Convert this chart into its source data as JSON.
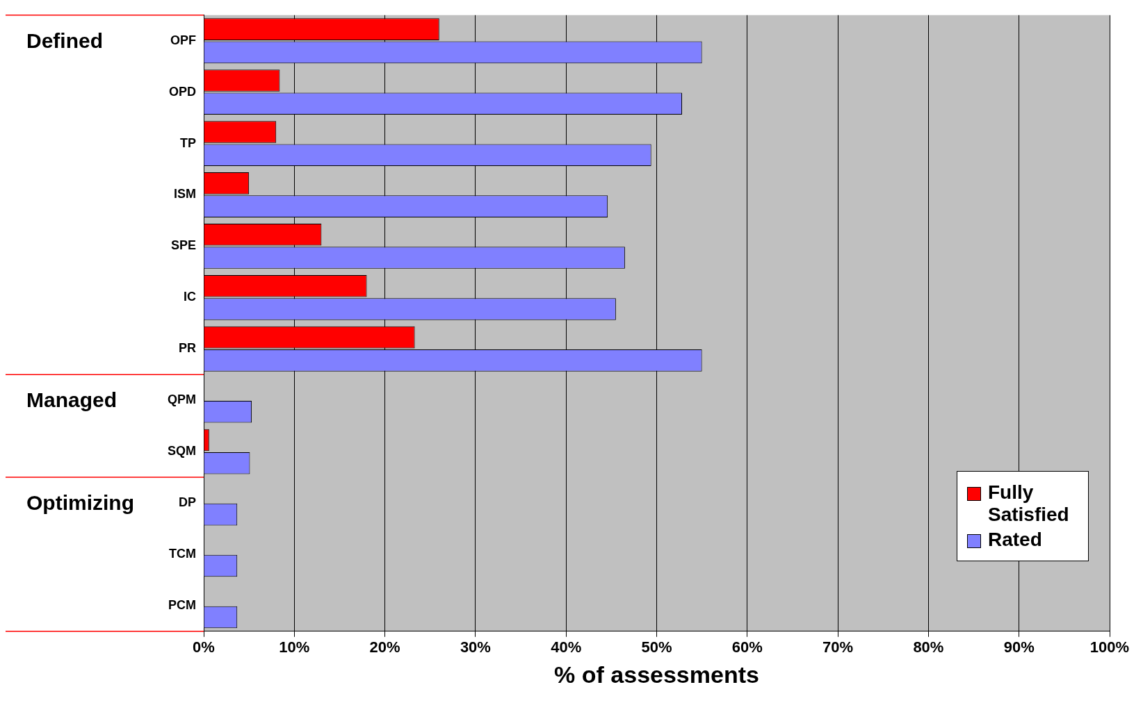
{
  "chart_data": {
    "type": "bar",
    "orientation": "horizontal",
    "xlabel": "% of assessments",
    "categories": [
      "OPF",
      "OPD",
      "TP",
      "ISM",
      "SPE",
      "IC",
      "PR",
      "QPM",
      "SQM",
      "DP",
      "TCM",
      "PCM"
    ],
    "series": [
      {
        "name": "Fully Satisfied",
        "color": "#ff0000",
        "values": [
          26,
          8.4,
          8,
          5,
          13,
          18,
          23.3,
          0,
          0.6,
          0,
          0,
          0
        ]
      },
      {
        "name": "Rated",
        "color": "#8080ff",
        "values": [
          55,
          52.8,
          49.4,
          44.6,
          46.5,
          45.5,
          55,
          5.3,
          5.1,
          3.7,
          3.7,
          3.7
        ]
      }
    ],
    "xlim": [
      0,
      100
    ],
    "xticks": [
      {
        "value": 0,
        "label": "0%"
      },
      {
        "value": 10,
        "label": "10%"
      },
      {
        "value": 20,
        "label": "20%"
      },
      {
        "value": 30,
        "label": "30%"
      },
      {
        "value": 40,
        "label": "40%"
      },
      {
        "value": 50,
        "label": "50%"
      },
      {
        "value": 60,
        "label": "60%"
      },
      {
        "value": 70,
        "label": "70%"
      },
      {
        "value": 80,
        "label": "80%"
      },
      {
        "value": 90,
        "label": "90%"
      },
      {
        "value": 100,
        "label": "100%"
      }
    ],
    "annotations": [
      "Defined",
      "Managed",
      "Optimizing"
    ],
    "grid": "x",
    "legend": "bottom right"
  }
}
